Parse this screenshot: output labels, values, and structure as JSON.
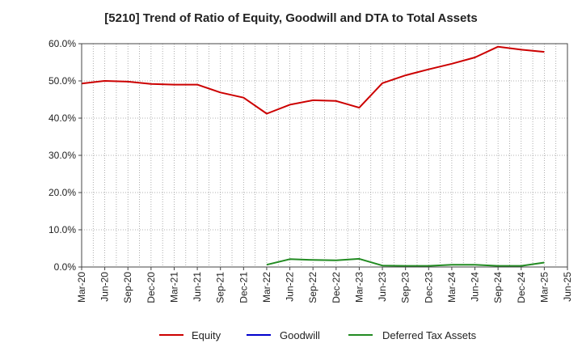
{
  "chart_data": {
    "type": "line",
    "title": "[5210]  Trend of Ratio of Equity, Goodwill and DTA to Total Assets",
    "xlabel": "",
    "ylabel": "",
    "ylim": [
      0,
      60
    ],
    "y_ticks": [
      "0.0%",
      "10.0%",
      "20.0%",
      "30.0%",
      "40.0%",
      "50.0%",
      "60.0%"
    ],
    "grid": true,
    "legend_position": "bottom",
    "x": [
      "Mar-20",
      "Jun-20",
      "Sep-20",
      "Dec-20",
      "Mar-21",
      "Jun-21",
      "Sep-21",
      "Dec-21",
      "Mar-22",
      "Jun-22",
      "Sep-22",
      "Dec-22",
      "Mar-23",
      "Jun-23",
      "Sep-23",
      "Dec-23",
      "Mar-24",
      "Jun-24",
      "Sep-24",
      "Dec-24",
      "Mar-25",
      "Jun-25"
    ],
    "series": [
      {
        "name": "Equity",
        "color": "#cc0000",
        "values": [
          49.3,
          50.0,
          49.8,
          49.2,
          49.0,
          49.0,
          46.9,
          45.5,
          41.2,
          43.6,
          44.8,
          44.6,
          42.8,
          49.4,
          51.5,
          53.1,
          54.6,
          56.3,
          59.2,
          58.4,
          57.8,
          null
        ]
      },
      {
        "name": "Goodwill",
        "color": "#0000cc",
        "values": [
          null,
          null,
          null,
          null,
          null,
          null,
          null,
          null,
          null,
          null,
          null,
          null,
          null,
          null,
          null,
          null,
          null,
          null,
          null,
          null,
          null,
          null
        ]
      },
      {
        "name": "Deferred Tax Assets",
        "color": "#228b22",
        "values": [
          null,
          null,
          null,
          null,
          null,
          null,
          null,
          null,
          0.6,
          2.1,
          1.9,
          1.8,
          2.2,
          0.4,
          0.3,
          0.3,
          0.6,
          0.6,
          0.3,
          0.3,
          1.2,
          null
        ]
      }
    ]
  }
}
